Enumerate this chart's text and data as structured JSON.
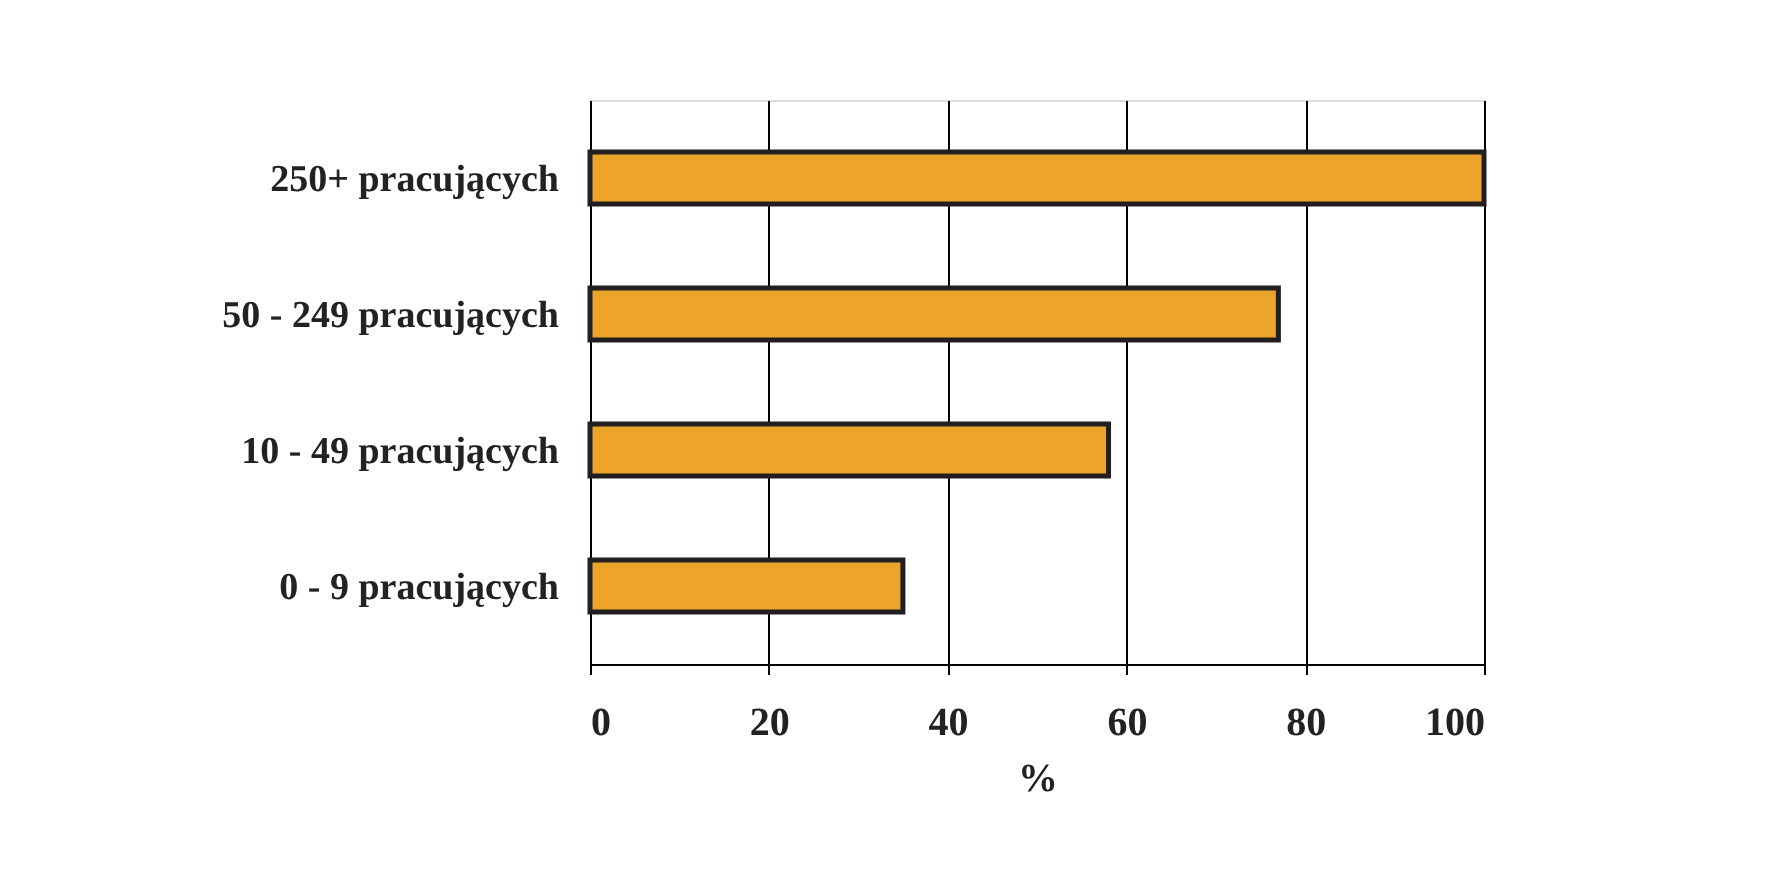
{
  "chart_data": {
    "type": "bar",
    "orientation": "horizontal",
    "categories": [
      "250+ pracujących",
      "50 - 249 pracujących",
      "10 - 49 pracujących",
      "0 - 9 pracujących"
    ],
    "values": [
      100,
      77,
      58,
      35
    ],
    "color": "#eca42a",
    "xlabel": "%",
    "xlim": [
      0,
      100
    ],
    "xticks": [
      0,
      20,
      40,
      60,
      80,
      100
    ],
    "grid": "x"
  }
}
